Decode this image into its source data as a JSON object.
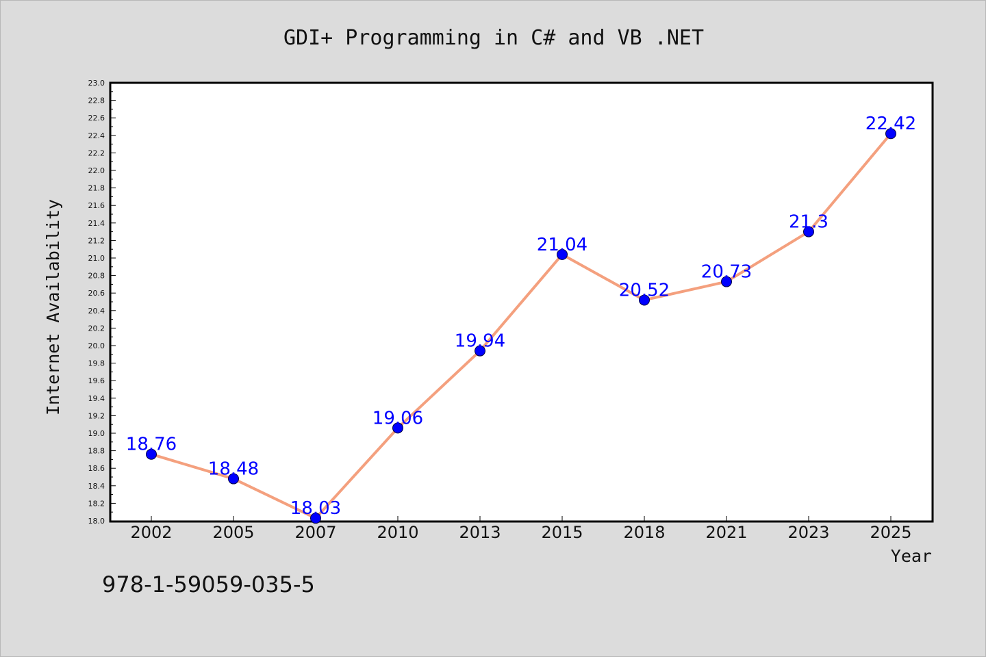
{
  "chart_data": {
    "type": "line",
    "title": "GDI+ Programming in C# and VB .NET",
    "xlabel": "Year",
    "ylabel": "Internet Availability",
    "categories": [
      "2002",
      "2005",
      "2007",
      "2010",
      "2013",
      "2015",
      "2018",
      "2021",
      "2023",
      "2025"
    ],
    "series": [
      {
        "values": [
          18.76,
          18.48,
          18.03,
          19.06,
          19.94,
          21.04,
          20.52,
          20.73,
          21.3,
          22.42
        ],
        "data_labels": [
          "18.76",
          "18.48",
          "18.03",
          "19.06",
          "19.94",
          "21.04",
          "20.52",
          "20.73",
          "21.3",
          "22.42"
        ]
      }
    ],
    "ylim": [
      18.0,
      23.0
    ],
    "ytick_labels": [
      "18.0",
      "18.2",
      "18.4",
      "18.6",
      "18.8",
      "19.0",
      "19.2",
      "19.4",
      "19.6",
      "19.8",
      "20.0",
      "20.2",
      "20.4",
      "20.6",
      "20.8",
      "21.0",
      "21.2",
      "21.4",
      "21.6",
      "21.8",
      "22.0",
      "22.2",
      "22.4",
      "22.6",
      "22.8",
      "23.0"
    ],
    "grid": false,
    "legend": "none",
    "colors": {
      "background": "#dcdcdc",
      "plot_background": "#ffffff",
      "line": "#f4a07e",
      "marker": "#0000ff",
      "data_label": "#0000ff"
    }
  },
  "footnote": "978-1-59059-035-5"
}
